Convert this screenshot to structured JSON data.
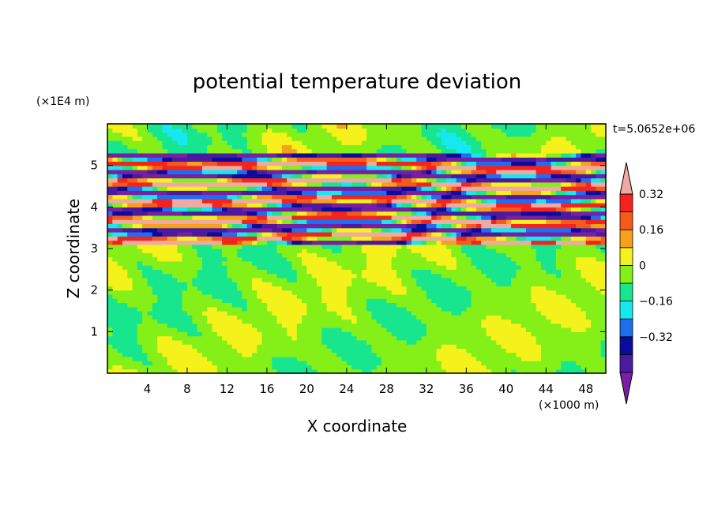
{
  "chart_data": {
    "type": "heatmap",
    "title": "potential temperature deviation",
    "xlabel": "X coordinate",
    "ylabel": "Z coordinate",
    "x_unit": "(×1000 m)",
    "y_unit": "(×1E4 m)",
    "time_label": "t=5.0652e+06",
    "xlim": [
      0,
      50
    ],
    "ylim": [
      0,
      6
    ],
    "x_ticks": [
      4,
      8,
      12,
      16,
      20,
      24,
      28,
      32,
      36,
      40,
      44,
      48
    ],
    "y_ticks": [
      1,
      2,
      3,
      4,
      5
    ],
    "colorbar": {
      "levels": [
        -0.48,
        -0.4,
        -0.32,
        -0.24,
        -0.16,
        -0.08,
        0,
        0.08,
        0.16,
        0.24,
        0.32,
        0.4
      ],
      "labels": [
        "0.32",
        "0.16",
        "0",
        "−0.16",
        "−0.32"
      ],
      "label_values": [
        0.32,
        0.16,
        0,
        -0.16,
        -0.32
      ],
      "colors": [
        "#7a1fa3",
        "#4b1aa0",
        "#0b0b9e",
        "#1e6ef0",
        "#17e8f0",
        "#18e68f",
        "#84f018",
        "#f4f21a",
        "#f7a11b",
        "#f55a1a",
        "#f5231e",
        "#f0a9a3"
      ],
      "extend": "both"
    },
    "field_description_free": true,
    "layers": [
      {
        "z_min": 0.0,
        "z_max": 3.05,
        "regime": "calm",
        "mix": [
          0,
          0.08
        ]
      },
      {
        "z_min": 3.05,
        "z_max": 5.35,
        "regime": "banded",
        "mix": [
          -0.48,
          0.48
        ]
      },
      {
        "z_min": 5.35,
        "z_max": 6.0,
        "regime": "calm",
        "mix": [
          0,
          0.08
        ]
      }
    ]
  }
}
